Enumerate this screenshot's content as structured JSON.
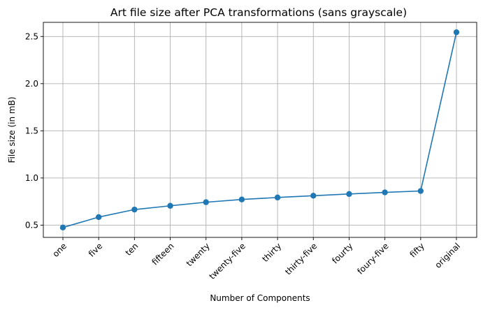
{
  "chart_data": {
    "type": "line",
    "title": "Art file size after PCA transformations (sans grayscale)",
    "xlabel": "Number of Components",
    "ylabel": "File size (in mB)",
    "categories": [
      "one",
      "five",
      "ten",
      "fifteen",
      "twenty",
      "twenty-five",
      "thirty",
      "thirty-five",
      "fourty",
      "foury-five",
      "fifty",
      "original"
    ],
    "series": [
      {
        "values": [
          0.475,
          0.585,
          0.665,
          0.705,
          0.743,
          0.772,
          0.793,
          0.812,
          0.83,
          0.847,
          0.862,
          2.545
        ],
        "color": "#1f77b4",
        "marker": "circle"
      }
    ],
    "ylim": [
      0.37,
      2.65
    ],
    "yticks": [
      0.5,
      1.0,
      1.5,
      2.0,
      2.5
    ],
    "ytick_labels": [
      "0.5",
      "1.0",
      "1.5",
      "2.0",
      "2.5"
    ],
    "grid": true,
    "legend": false
  }
}
